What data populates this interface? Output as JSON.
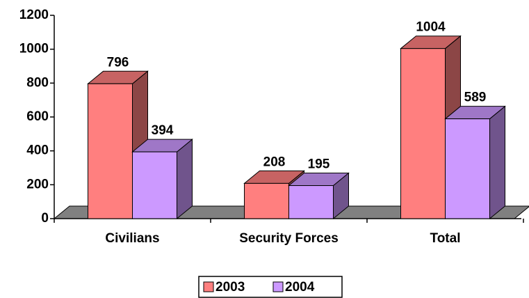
{
  "chart_data": {
    "type": "bar3d",
    "categories": [
      "Civilians",
      "Security Forces",
      "Total"
    ],
    "series": [
      {
        "name": "2003",
        "color": "#ff7f7f",
        "values": [
          796,
          208,
          1004
        ]
      },
      {
        "name": "2004",
        "color": "#cc99ff",
        "values": [
          394,
          195,
          589
        ]
      }
    ],
    "ylim": [
      0,
      1200
    ],
    "yticks": [
      0,
      200,
      400,
      600,
      800,
      1000,
      1200
    ],
    "legend": "bottom"
  }
}
